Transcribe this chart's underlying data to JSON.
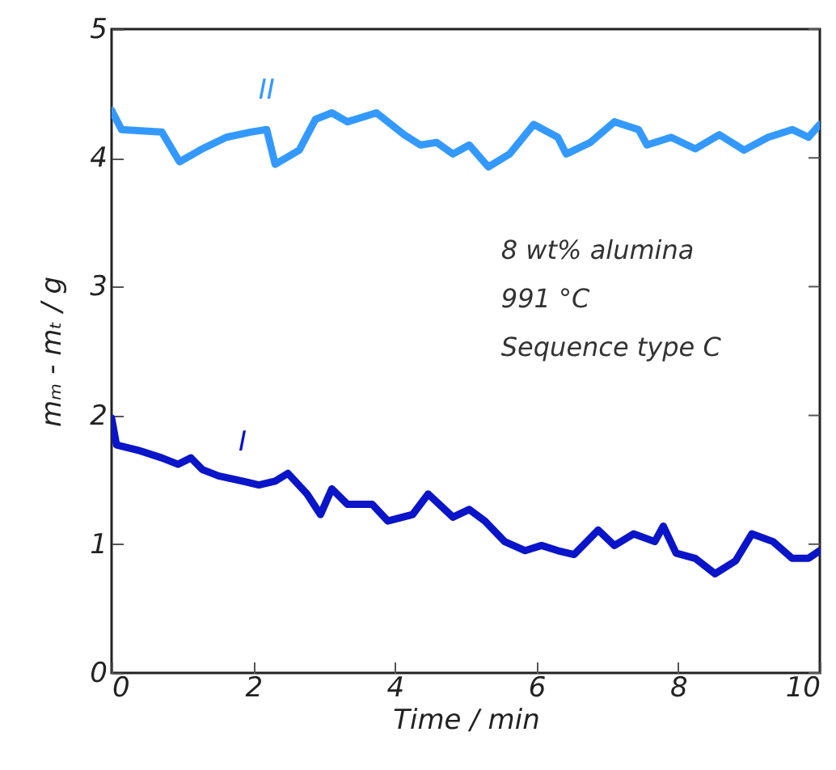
{
  "chart_data": {
    "type": "line",
    "xlabel": "Time  /  min",
    "ylabel": "mₘ - mₜ  /  g",
    "xlim": [
      0,
      10
    ],
    "xticks": [
      0,
      2,
      4,
      6,
      8,
      10
    ],
    "ylim": [
      0,
      5
    ],
    "yticks": [
      0,
      1,
      2,
      3,
      4,
      5
    ],
    "grid": false,
    "line_style": "solid",
    "marker": "none",
    "annotations": [
      "8 wt% alumina",
      "991 °C",
      "Sequence type C"
    ],
    "series": [
      {
        "name": "II",
        "color": "#3399ff",
        "x": [
          0,
          0.14,
          0.71,
          0.96,
          1.28,
          1.62,
          1.96,
          2.19,
          2.31,
          2.65,
          2.88,
          3.11,
          3.33,
          3.74,
          4.13,
          4.36,
          4.59,
          4.82,
          5.05,
          5.32,
          5.62,
          5.96,
          6.3,
          6.42,
          6.76,
          7.1,
          7.44,
          7.56,
          7.9,
          8.24,
          8.58,
          8.93,
          9.27,
          9.61,
          9.84,
          10
        ],
        "values": [
          4.37,
          4.22,
          4.2,
          3.97,
          4.07,
          4.16,
          4.2,
          4.22,
          3.95,
          4.06,
          4.3,
          4.35,
          4.28,
          4.35,
          4.18,
          4.1,
          4.12,
          4.03,
          4.1,
          3.93,
          4.03,
          4.26,
          4.16,
          4.03,
          4.12,
          4.28,
          4.22,
          4.1,
          4.16,
          4.07,
          4.18,
          4.06,
          4.16,
          4.22,
          4.16,
          4.26
        ]
      },
      {
        "name": "I",
        "color": "#0a14c8",
        "x": [
          0,
          0.07,
          0.37,
          0.71,
          0.94,
          1.12,
          1.28,
          1.51,
          1.85,
          2.08,
          2.31,
          2.49,
          2.76,
          2.95,
          3.11,
          3.33,
          3.68,
          3.9,
          4.25,
          4.47,
          4.82,
          5.05,
          5.27,
          5.55,
          5.84,
          6.07,
          6.3,
          6.53,
          6.87,
          7.1,
          7.37,
          7.67,
          7.79,
          7.97,
          8.24,
          8.52,
          8.81,
          9.04,
          9.34,
          9.61,
          9.84,
          10
        ],
        "values": [
          1.98,
          1.77,
          1.73,
          1.67,
          1.62,
          1.67,
          1.58,
          1.53,
          1.49,
          1.46,
          1.49,
          1.55,
          1.39,
          1.23,
          1.43,
          1.31,
          1.31,
          1.18,
          1.23,
          1.39,
          1.21,
          1.27,
          1.18,
          1.02,
          0.95,
          0.99,
          0.95,
          0.92,
          1.11,
          0.99,
          1.08,
          1.02,
          1.14,
          0.93,
          0.89,
          0.77,
          0.87,
          1.08,
          1.02,
          0.89,
          0.89,
          0.95
        ]
      }
    ]
  }
}
